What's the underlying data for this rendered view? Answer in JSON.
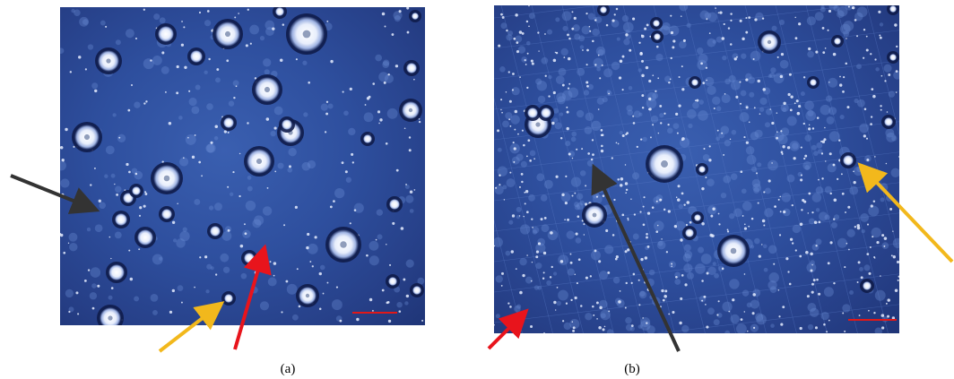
{
  "figure": {
    "panels": [
      {
        "id": "a",
        "caption": "(a)"
      },
      {
        "id": "b",
        "caption": "(b)"
      }
    ],
    "arrow_colors": {
      "black": "#333333",
      "red": "#e8141c",
      "yellow": "#f2b81c"
    },
    "scale_bar_color": "#e01818"
  }
}
